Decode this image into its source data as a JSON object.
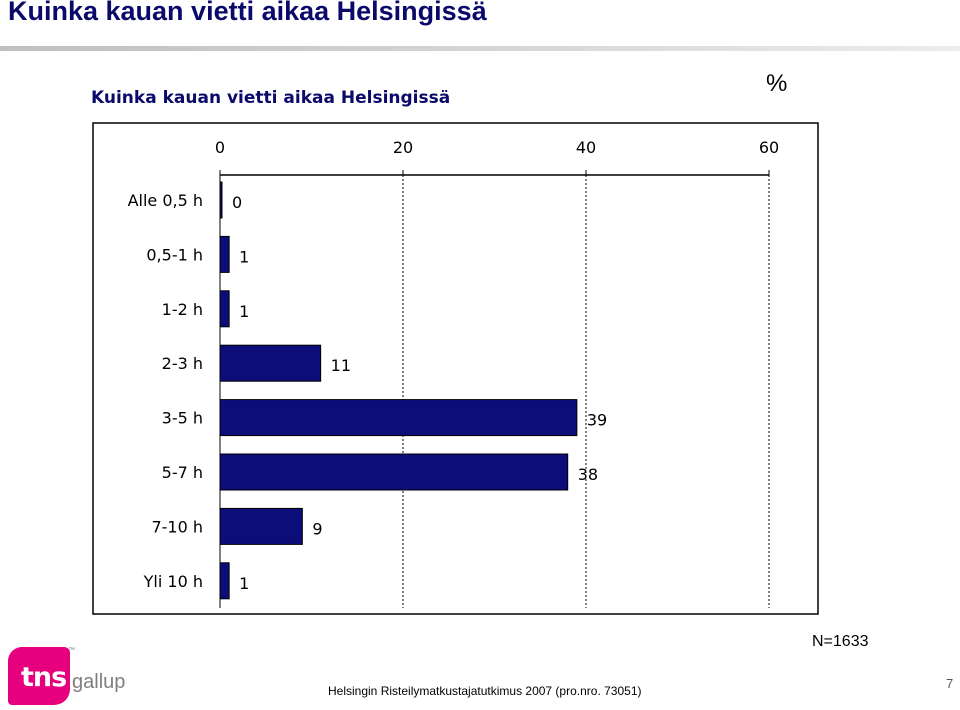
{
  "slide": {
    "title": "Kuinka kauan vietti aikaa Helsingissä",
    "unit_label": "%",
    "n_label": "N=1633",
    "source": "Helsingin Risteilymatkustajatutkimus 2007 (pro.nro. 73051)",
    "page_number": "7"
  },
  "logo": {
    "badge_text": "tns",
    "brand_text": "gallup",
    "tm": "™",
    "badge_color": "#e6007e"
  },
  "chart_data": {
    "type": "bar",
    "orientation": "horizontal",
    "title": "Kuinka kauan vietti aikaa Helsingissä",
    "categories": [
      "Alle 0,5 h",
      "0,5-1 h",
      "1-2 h",
      "2-3 h",
      "3-5 h",
      "5-7 h",
      "7-10 h",
      "Yli 10 h"
    ],
    "values": [
      0.2,
      1,
      1,
      11,
      39,
      38,
      9,
      1
    ],
    "data_labels": [
      "0",
      "1",
      "1",
      "11",
      "39",
      "38",
      "9",
      "1"
    ],
    "xlim": [
      0,
      60
    ],
    "xticks": [
      0,
      20,
      40,
      60
    ],
    "tick_labels": [
      "0",
      "20",
      "40",
      "60"
    ],
    "axis_position": "top",
    "gridlines": "dashed-vertical",
    "bar_color": "#0d0d7a"
  }
}
